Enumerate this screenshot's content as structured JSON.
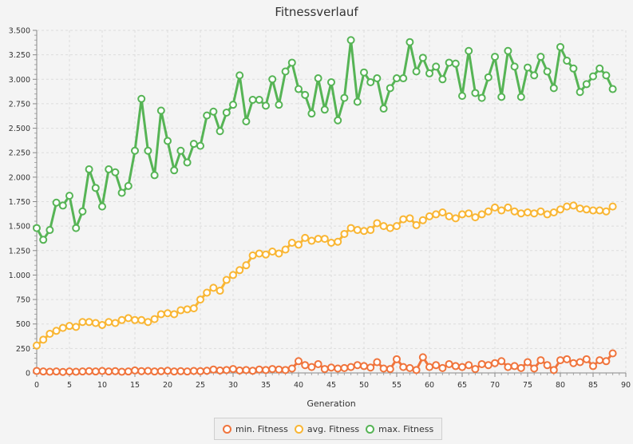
{
  "chart_data": {
    "type": "line",
    "title": "Fitnessverlauf",
    "xlabel": "Generation",
    "ylabel": "",
    "xlim": [
      0,
      90
    ],
    "ylim": [
      0,
      3500
    ],
    "xticks": [
      0,
      5,
      10,
      15,
      20,
      25,
      30,
      35,
      40,
      45,
      50,
      55,
      60,
      65,
      70,
      75,
      80,
      85,
      90
    ],
    "yticks": [
      0,
      250,
      500,
      750,
      1000,
      1250,
      1500,
      1750,
      2000,
      2250,
      2500,
      2750,
      3000,
      3250,
      3500
    ],
    "ytick_labels": [
      "0",
      "250",
      "500",
      "750",
      "1.000",
      "1.250",
      "1.500",
      "1.750",
      "2.000",
      "2.250",
      "2.500",
      "2.750",
      "3.000",
      "3.250",
      "3.500"
    ],
    "xtick_labels": [
      "0",
      "5",
      "10",
      "15",
      "20",
      "25",
      "30",
      "35",
      "40",
      "45",
      "50",
      "55",
      "60",
      "65",
      "70",
      "75",
      "80",
      "85",
      "90"
    ],
    "grid": true,
    "legend_position": "bottom",
    "x": [
      0,
      1,
      2,
      3,
      4,
      5,
      6,
      7,
      8,
      9,
      10,
      11,
      12,
      13,
      14,
      15,
      16,
      17,
      18,
      19,
      20,
      21,
      22,
      23,
      24,
      25,
      26,
      27,
      28,
      29,
      30,
      31,
      32,
      33,
      34,
      35,
      36,
      37,
      38,
      39,
      40,
      41,
      42,
      43,
      44,
      45,
      46,
      47,
      48,
      49,
      50,
      51,
      52,
      53,
      54,
      55,
      56,
      57,
      58,
      59,
      60,
      61,
      62,
      63,
      64,
      65,
      66,
      67,
      68,
      69,
      70,
      71,
      72,
      73,
      74,
      75,
      76,
      77,
      78,
      79,
      80,
      81,
      82,
      83,
      84,
      85,
      86,
      87,
      88
    ],
    "series": [
      {
        "name": "min. Fitness",
        "color": "#f0743c",
        "values": [
          20,
          15,
          12,
          15,
          10,
          15,
          12,
          15,
          18,
          15,
          20,
          15,
          18,
          12,
          15,
          25,
          18,
          20,
          15,
          18,
          22,
          15,
          18,
          15,
          20,
          18,
          22,
          35,
          25,
          30,
          40,
          25,
          30,
          22,
          35,
          30,
          40,
          35,
          30,
          45,
          120,
          80,
          60,
          90,
          40,
          55,
          45,
          50,
          60,
          80,
          70,
          55,
          110,
          45,
          40,
          140,
          60,
          50,
          30,
          160,
          60,
          80,
          50,
          90,
          70,
          60,
          80,
          40,
          90,
          80,
          100,
          120,
          60,
          70,
          50,
          110,
          45,
          130,
          80,
          30,
          130,
          140,
          100,
          110,
          140,
          70,
          130,
          120,
          200
        ]
      },
      {
        "name": "avg. Fitness",
        "color": "#f9b634",
        "values": [
          280,
          340,
          400,
          430,
          460,
          480,
          470,
          520,
          520,
          510,
          490,
          520,
          510,
          540,
          560,
          540,
          540,
          520,
          550,
          600,
          610,
          600,
          640,
          650,
          660,
          750,
          820,
          870,
          840,
          950,
          1000,
          1050,
          1100,
          1200,
          1220,
          1210,
          1240,
          1220,
          1260,
          1330,
          1310,
          1380,
          1350,
          1370,
          1370,
          1330,
          1340,
          1420,
          1480,
          1460,
          1450,
          1460,
          1530,
          1500,
          1480,
          1500,
          1570,
          1580,
          1510,
          1560,
          1600,
          1620,
          1640,
          1600,
          1580,
          1620,
          1630,
          1590,
          1620,
          1650,
          1690,
          1660,
          1690,
          1650,
          1630,
          1640,
          1630,
          1650,
          1620,
          1640,
          1670,
          1700,
          1710,
          1680,
          1670,
          1660,
          1660,
          1650,
          1700
        ]
      },
      {
        "name": "max. Fitness",
        "color": "#56b455",
        "values": [
          1480,
          1360,
          1460,
          1740,
          1710,
          1810,
          1480,
          1650,
          2080,
          1890,
          1700,
          2080,
          2050,
          1840,
          1910,
          2270,
          2800,
          2270,
          2020,
          2680,
          2370,
          2070,
          2270,
          2150,
          2340,
          2320,
          2630,
          2670,
          2470,
          2660,
          2740,
          3040,
          2570,
          2790,
          2790,
          2730,
          3000,
          2740,
          3080,
          3170,
          2900,
          2840,
          2650,
          3010,
          2690,
          2970,
          2580,
          2810,
          3400,
          2770,
          3070,
          2970,
          3010,
          2700,
          2910,
          3010,
          3010,
          3380,
          3080,
          3220,
          3060,
          3130,
          3000,
          3170,
          3160,
          2830,
          3290,
          2860,
          2810,
          3020,
          3230,
          2820,
          3290,
          3130,
          2820,
          3120,
          3040,
          3230,
          3080,
          2910,
          3330,
          3190,
          3110,
          2870,
          2950,
          3030,
          3110,
          3040,
          2900
        ]
      }
    ]
  }
}
